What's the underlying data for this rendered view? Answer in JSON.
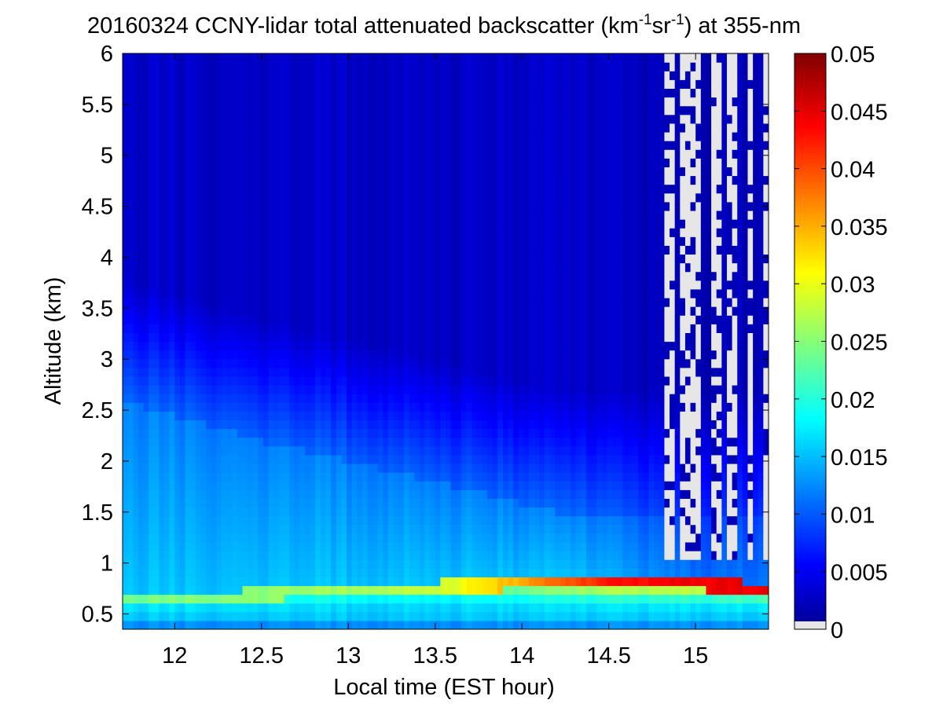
{
  "chart_data": {
    "type": "heatmap",
    "title": {
      "prefix": "20160324 CCNY-lidar total attenuated backscatter (km",
      "sup1": "-1",
      "mid": "sr",
      "sup2": "-1",
      "suffix": ") at 355-nm"
    },
    "xlabel": "Local time (EST hour)",
    "ylabel": "Altitude (km)",
    "xlim": [
      11.7,
      15.42
    ],
    "ylim": [
      0.35,
      6.0
    ],
    "xticks": [
      12,
      12.5,
      13,
      13.5,
      14,
      14.5,
      15
    ],
    "xtick_labels": [
      "12",
      "12.5",
      "13",
      "13.5",
      "14",
      "14.5",
      "15"
    ],
    "yticks": [
      0.5,
      1,
      1.5,
      2,
      2.5,
      3,
      3.5,
      4,
      4.5,
      5,
      5.5,
      6
    ],
    "ytick_labels": [
      "0.5",
      "1",
      "1.5",
      "2",
      "2.5",
      "3",
      "3.5",
      "4",
      "4.5",
      "5",
      "5.5",
      "6"
    ],
    "colorbar": {
      "colormap": "jet",
      "clim": [
        0,
        0.05
      ],
      "ticks": [
        0,
        0.005,
        0.01,
        0.015,
        0.02,
        0.025,
        0.03,
        0.035,
        0.04,
        0.045,
        0.05
      ],
      "tick_labels": [
        "0",
        "0.005",
        "0.01",
        "0.015",
        "0.02",
        "0.025",
        "0.03",
        "0.035",
        "0.04",
        "0.045",
        "0.05"
      ],
      "below_min_color": "#e6e6e6"
    },
    "features": {
      "near_surface_level_km": 0.4,
      "near_surface_value": 0.015,
      "aerosol_layer_value": 0.018,
      "boundary_layer_top": {
        "x": [
          11.7,
          12.0,
          12.5,
          13.0,
          13.5,
          14.0,
          14.5,
          15.0,
          15.42
        ],
        "altitude_km": [
          0.65,
          0.66,
          0.68,
          0.72,
          0.76,
          0.78,
          0.78,
          0.78,
          0.75
        ],
        "value": [
          0.027,
          0.028,
          0.029,
          0.03,
          0.032,
          0.04,
          0.048,
          0.05,
          0.05
        ]
      },
      "residual_layer_top_km": {
        "x": [
          11.7,
          12.5,
          13.5,
          14.2
        ],
        "altitude_km": [
          2.6,
          2.2,
          1.8,
          1.5
        ]
      },
      "free_troposphere_value": 0.004,
      "signal_loss_columns_start_hour": 14.8
    }
  }
}
